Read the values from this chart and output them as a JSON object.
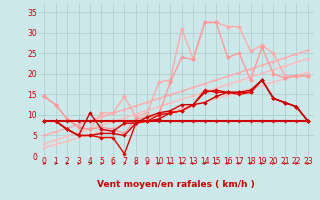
{
  "background_color": "#cce8ea",
  "grid_color": "#aacccc",
  "xlabel": "Vent moyen/en rafales ( km/h )",
  "xlabel_color": "#cc0000",
  "xlabel_fontsize": 6.5,
  "tick_color": "#cc0000",
  "tick_fontsize": 5.5,
  "xlim": [
    -0.5,
    23.5
  ],
  "ylim": [
    0,
    37
  ],
  "yticks": [
    0,
    5,
    10,
    15,
    20,
    25,
    30,
    35
  ],
  "xticks": [
    0,
    1,
    2,
    3,
    4,
    5,
    6,
    7,
    8,
    9,
    10,
    11,
    12,
    13,
    14,
    15,
    16,
    17,
    18,
    19,
    20,
    21,
    22,
    23
  ],
  "series": [
    {
      "x": [
        0,
        1,
        2,
        3,
        4,
        5,
        6,
        7,
        8,
        9,
        10,
        11,
        12,
        13,
        14,
        15,
        16,
        17,
        18,
        19,
        20,
        21,
        22,
        23
      ],
      "y": [
        2.0,
        2.8,
        3.6,
        4.4,
        5.2,
        6.0,
        6.8,
        7.6,
        8.4,
        9.2,
        10.0,
        10.8,
        11.6,
        12.4,
        13.2,
        14.0,
        14.8,
        15.6,
        16.4,
        17.2,
        18.0,
        18.8,
        19.6,
        20.4
      ],
      "color": "#ffbbbb",
      "lw": 1.0,
      "marker": "D",
      "ms": 1.8
    },
    {
      "x": [
        0,
        1,
        2,
        3,
        4,
        5,
        6,
        7,
        8,
        9,
        10,
        11,
        12,
        13,
        14,
        15,
        16,
        17,
        18,
        19,
        20,
        21,
        22,
        23
      ],
      "y": [
        3.0,
        3.9,
        4.8,
        5.7,
        6.6,
        7.5,
        8.4,
        9.3,
        10.2,
        11.1,
        12.0,
        12.9,
        13.8,
        14.7,
        15.6,
        16.5,
        17.4,
        18.3,
        19.2,
        20.1,
        21.0,
        21.9,
        22.8,
        23.7
      ],
      "color": "#ffbbbb",
      "lw": 1.0,
      "marker": "D",
      "ms": 1.8
    },
    {
      "x": [
        0,
        1,
        2,
        3,
        4,
        5,
        6,
        7,
        8,
        9,
        10,
        11,
        12,
        13,
        14,
        15,
        16,
        17,
        18,
        19,
        20,
        21,
        22,
        23
      ],
      "y": [
        5.0,
        5.9,
        6.8,
        7.7,
        8.6,
        9.5,
        10.4,
        11.3,
        12.2,
        13.1,
        14.0,
        14.9,
        15.8,
        16.7,
        17.6,
        18.5,
        19.4,
        20.3,
        21.2,
        22.1,
        23.0,
        23.9,
        24.8,
        25.7
      ],
      "color": "#ffaaaa",
      "lw": 1.0,
      "marker": "D",
      "ms": 1.8
    },
    {
      "x": [
        0,
        1,
        2,
        3,
        4,
        5,
        6,
        7,
        8,
        9,
        10,
        11,
        12,
        13,
        14,
        15,
        16,
        17,
        18,
        19,
        20,
        21,
        22,
        23
      ],
      "y": [
        14.5,
        12.5,
        9.0,
        7.0,
        6.5,
        10.5,
        10.5,
        14.5,
        9.5,
        10.5,
        18.0,
        18.5,
        31.0,
        23.5,
        32.5,
        32.5,
        31.5,
        31.5,
        25.5,
        27.0,
        25.0,
        19.5,
        19.5,
        19.5
      ],
      "color": "#ffaaaa",
      "lw": 1.0,
      "marker": "D",
      "ms": 2.5
    },
    {
      "x": [
        0,
        1,
        2,
        3,
        4,
        5,
        6,
        7,
        8,
        9,
        10,
        11,
        12,
        13,
        14,
        15,
        16,
        17,
        18,
        19,
        20,
        21,
        22,
        23
      ],
      "y": [
        14.5,
        12.5,
        9.0,
        7.0,
        6.5,
        7.0,
        6.5,
        5.5,
        9.0,
        9.5,
        10.0,
        18.0,
        24.0,
        23.5,
        32.5,
        32.5,
        24.0,
        25.0,
        18.5,
        26.5,
        20.0,
        19.0,
        19.5,
        19.5
      ],
      "color": "#ff9999",
      "lw": 1.0,
      "marker": "D",
      "ms": 2.5
    },
    {
      "x": [
        0,
        1,
        2,
        3,
        4,
        5,
        6,
        7,
        8,
        9,
        10,
        11,
        12,
        13,
        14,
        15,
        16,
        17,
        18,
        19,
        20,
        21,
        22,
        23
      ],
      "y": [
        8.5,
        8.5,
        8.5,
        8.5,
        8.5,
        8.5,
        8.5,
        8.5,
        8.5,
        8.5,
        8.5,
        8.5,
        8.5,
        8.5,
        8.5,
        8.5,
        8.5,
        8.5,
        8.5,
        8.5,
        8.5,
        8.5,
        8.5,
        8.5
      ],
      "color": "#cc0000",
      "lw": 1.5,
      "marker": "D",
      "ms": 2.0
    },
    {
      "x": [
        0,
        1,
        2,
        3,
        4,
        5,
        6,
        7,
        8,
        9,
        10,
        11,
        12,
        13,
        14,
        15,
        16,
        17,
        18,
        19,
        20,
        21,
        22,
        23
      ],
      "y": [
        8.5,
        8.5,
        6.5,
        5.0,
        10.5,
        6.5,
        6.0,
        8.0,
        8.0,
        8.5,
        9.0,
        10.5,
        11.0,
        12.5,
        13.0,
        14.5,
        15.5,
        15.5,
        15.5,
        18.5,
        14.0,
        13.0,
        12.0,
        8.5
      ],
      "color": "#cc0000",
      "lw": 1.0,
      "marker": "D",
      "ms": 2.2
    },
    {
      "x": [
        0,
        1,
        2,
        3,
        4,
        5,
        6,
        7,
        8,
        9,
        10,
        11,
        12,
        13,
        14,
        15,
        16,
        17,
        18,
        19,
        20,
        21,
        22,
        23
      ],
      "y": [
        8.5,
        8.5,
        6.5,
        5.0,
        5.0,
        4.5,
        4.5,
        0.5,
        8.0,
        8.5,
        10.0,
        10.5,
        11.0,
        12.5,
        16.0,
        15.5,
        15.5,
        15.0,
        15.5,
        18.5,
        14.0,
        13.0,
        12.0,
        8.5
      ],
      "color": "#ee0000",
      "lw": 1.0,
      "marker": "D",
      "ms": 2.2
    },
    {
      "x": [
        0,
        1,
        2,
        3,
        4,
        5,
        6,
        7,
        8,
        9,
        10,
        11,
        12,
        13,
        14,
        15,
        16,
        17,
        18,
        19,
        20,
        21,
        22,
        23
      ],
      "y": [
        8.5,
        8.5,
        6.5,
        5.0,
        5.0,
        5.5,
        5.5,
        5.0,
        8.0,
        9.5,
        10.5,
        11.0,
        12.5,
        12.5,
        15.5,
        16.0,
        15.5,
        15.5,
        16.0,
        18.5,
        14.0,
        13.0,
        12.0,
        8.5
      ],
      "color": "#cc0000",
      "lw": 1.0,
      "marker": "D",
      "ms": 2.2
    }
  ],
  "wind_arrow_color": "#cc0000",
  "wind_arrows_x": [
    0,
    1,
    2,
    3,
    4,
    5,
    6,
    7,
    8,
    9,
    10,
    11,
    12,
    13,
    14,
    15,
    16,
    17,
    18,
    19,
    20,
    21,
    22,
    23
  ],
  "wind_arrows_angles": [
    0,
    0,
    0,
    0,
    0,
    0,
    0,
    0,
    45,
    0,
    0,
    45,
    45,
    0,
    0,
    45,
    45,
    0,
    315,
    315,
    315,
    315,
    315,
    315
  ]
}
